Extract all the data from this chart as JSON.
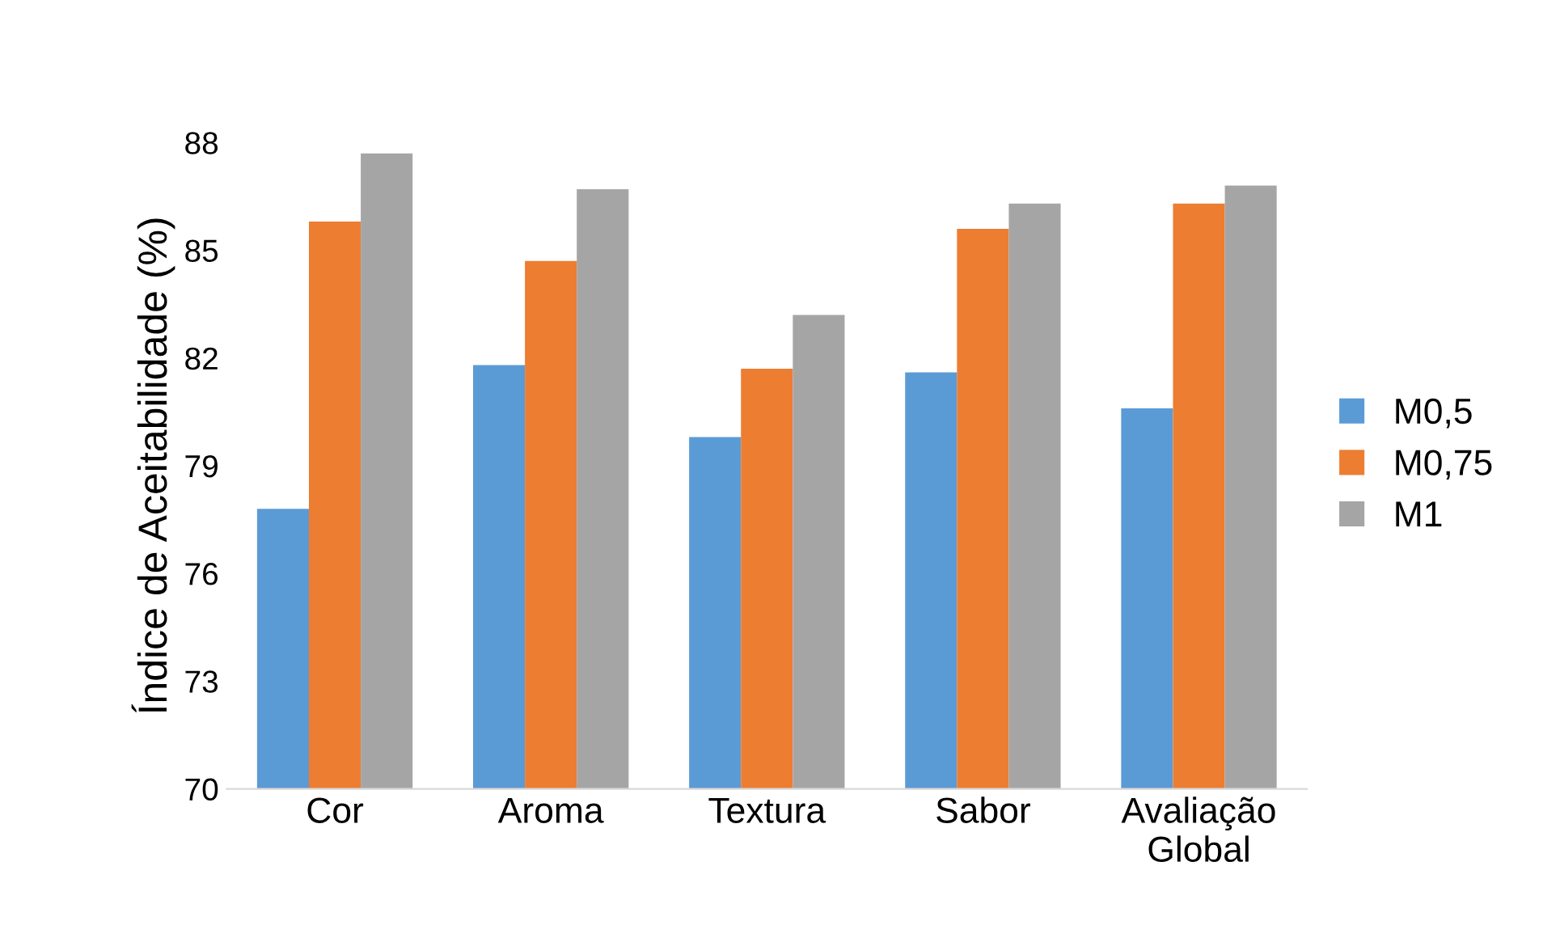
{
  "chart_data": {
    "type": "bar",
    "ylabel": "Índice de Aceitabilidade (%)",
    "categories": [
      "Cor",
      "Aroma",
      "Textura",
      "Sabor",
      "Avaliação\nGlobal"
    ],
    "series": [
      {
        "name": "M0,5",
        "color": "#5b9bd5",
        "values": [
          77.8,
          81.8,
          79.8,
          81.6,
          80.6
        ]
      },
      {
        "name": "M0,75",
        "color": "#ed7d31",
        "values": [
          85.8,
          84.7,
          81.7,
          85.6,
          86.3
        ]
      },
      {
        "name": "M1",
        "color": "#a5a5a5",
        "values": [
          87.7,
          86.7,
          83.2,
          86.3,
          86.8
        ]
      }
    ],
    "ylim": [
      70,
      88
    ],
    "yticks": [
      70,
      73,
      76,
      79,
      82,
      85,
      88
    ],
    "grid": false,
    "legend": "right"
  }
}
